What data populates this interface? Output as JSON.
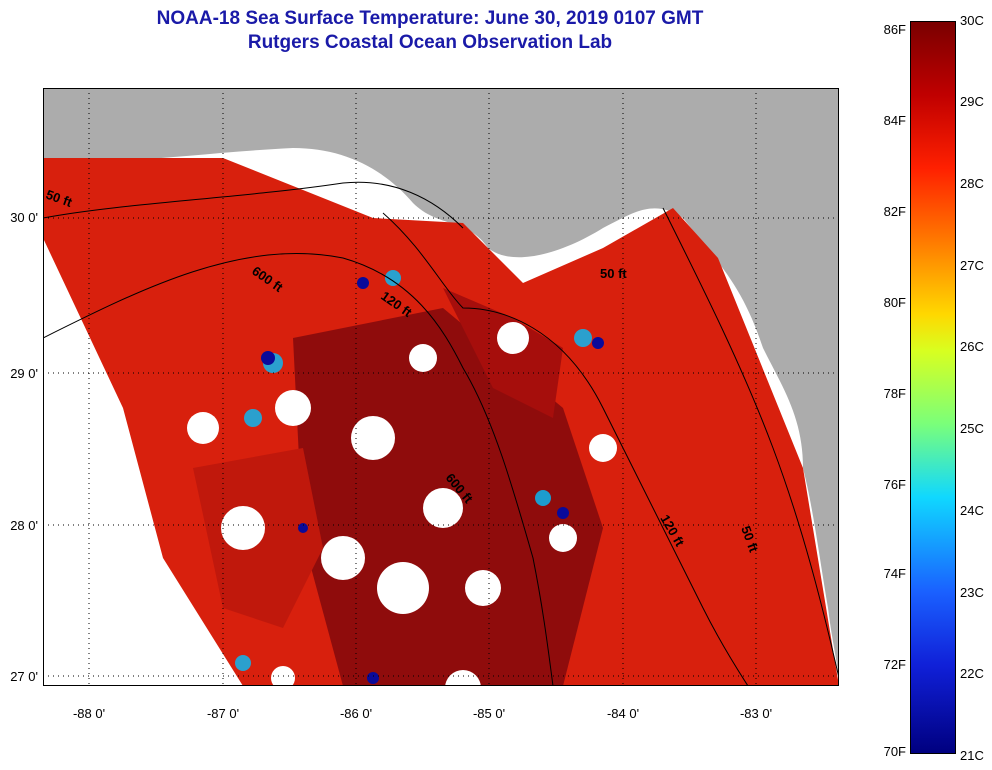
{
  "title_line1": "NOAA-18 Sea Surface Temperature:  June 30, 2019 0107 GMT",
  "title_line2": "Rutgers Coastal Ocean Observation Lab",
  "lat_labels": [
    "30 0'",
    "29 0'",
    "28 0'",
    "27 0'"
  ],
  "lon_labels": [
    "-88 0'",
    "-87 0'",
    "-86 0'",
    "-85 0'",
    "-84 0'",
    "-83 0'"
  ],
  "contour_labels": [
    "50 ft",
    "600 ft",
    "120 ft",
    "50 ft",
    "600 ft",
    "120 ft",
    "50 ft"
  ],
  "colorbar": {
    "f_labels": [
      "86F",
      "84F",
      "82F",
      "80F",
      "78F",
      "76F",
      "74F",
      "72F",
      "70F"
    ],
    "c_labels": [
      "30C",
      "29C",
      "28C",
      "27C",
      "26C",
      "25C",
      "24C",
      "23C",
      "22C",
      "21C"
    ]
  },
  "colors": {
    "land": "#acacac",
    "ocean_warm": "#b0120a",
    "ocean_hot": "#8a0a0a",
    "cloud": "#ffffff",
    "title": "#1a1aa8"
  }
}
